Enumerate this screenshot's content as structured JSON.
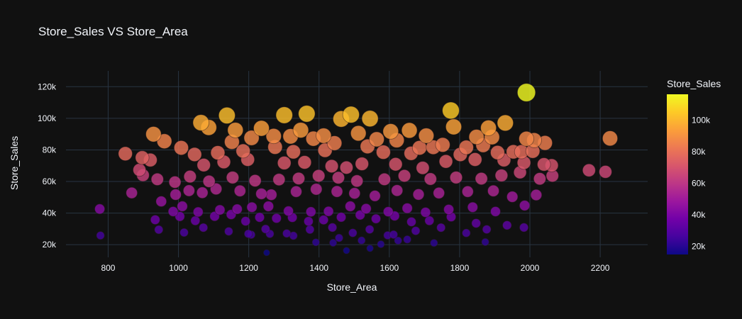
{
  "chart_data": {
    "type": "scatter",
    "title": "Store_Sales VS Store_Area",
    "xlabel": "Store_Area",
    "ylabel": "Store_Sales",
    "xlim": [
      680,
      2335
    ],
    "ylim": [
      12000,
      130000
    ],
    "x_ticks": [
      800,
      1000,
      1200,
      1400,
      1600,
      1800,
      2000,
      2200
    ],
    "x_tick_labels": [
      "800",
      "1000",
      "1200",
      "1400",
      "1600",
      "1800",
      "2000",
      "2200"
    ],
    "y_ticks": [
      20000,
      40000,
      60000,
      80000,
      100000,
      120000
    ],
    "y_tick_labels": [
      "20k",
      "40k",
      "60k",
      "80k",
      "100k",
      "120k"
    ],
    "grid": true,
    "marker_size_encodes": "Store_Sales",
    "colorbar": {
      "title": "Store_Sales",
      "range": [
        14920,
        116320
      ],
      "ticks": [
        20000,
        40000,
        60000,
        80000,
        100000
      ],
      "tick_labels": [
        "20k",
        "40k",
        "60k",
        "80k",
        "100k"
      ],
      "colorscale": [
        "#0d0887",
        "#46039f",
        "#7201a8",
        "#9c179e",
        "#bd3786",
        "#d8576b",
        "#ed7953",
        "#fb9f3a",
        "#fdca26",
        "#f0f921"
      ]
    },
    "series": [
      {
        "x": [
          1990,
          2228,
          1775,
          1365,
          1491,
          1301,
          1138,
          1064,
          1463,
          1545,
          1930,
          1657,
          1783,
          1086,
          929,
          1348,
          1162,
          1236,
          1413,
          1512,
          1604,
          1882,
          2012,
          1990,
          1208,
          1564,
          1271,
          1319,
          1384,
          1444,
          1621,
          1705,
          1848,
          2043,
          1892,
          1008,
          960,
          1152,
          1275,
          1538,
          1686,
          1752,
          1819,
          1953,
          2008,
          849,
          897,
          920,
          1046,
          1112,
          1184,
          1327,
          1417,
          1583,
          1662,
          1725,
          1802,
          1867,
          1908,
          1976,
          2062,
          2168,
          2215,
          889,
          1072,
          1129,
          1197,
          1301,
          1359,
          1436,
          1478,
          1522,
          1618,
          1695,
          1761,
          1844,
          1926,
          1983,
          2040,
          867,
          899,
          940,
          990,
          1033,
          1087,
          1154,
          1218,
          1286,
          1342,
          1399,
          1455,
          1508,
          1586,
          1643,
          1717,
          1790,
          1862,
          1919,
          1972,
          2028,
          2064,
          951,
          992,
          1030,
          1068,
          1107,
          1175,
          1236,
          1264,
          1335,
          1392,
          1451,
          1501,
          1559,
          1622,
          1683,
          1741,
          1823,
          1896,
          1950,
          2018,
          985,
          1011,
          1056,
          1118,
          1167,
          1209,
          1256,
          1313,
          1377,
          1427,
          1489,
          1534,
          1597,
          1651,
          1703,
          1769,
          1837,
          1902,
          1985,
          776,
          934,
          1004,
          1048,
          1103,
          1150,
          1191,
          1231,
          1279,
          1324,
          1370,
          1413,
          1463,
          1517,
          1562,
          1615,
          1663,
          1714,
          1776,
          1847,
          1935,
          778,
          944,
          1016,
          1071,
          1143,
          1199,
          1248,
          1308,
          1374,
          1438,
          1496,
          1544,
          1612,
          1675,
          1747,
          1819,
          1877,
          1983,
          1251,
          1478,
          1545,
          1625,
          1440,
          1576,
          1207,
          1260,
          1327,
          1391,
          1457,
          1521,
          1595,
          1651,
          1727,
          1873
        ],
        "y": [
          116320,
          87280,
          104900,
          102920,
          102310,
          102010,
          101780,
          97260,
          99570,
          99800,
          97080,
          92370,
          94620,
          94180,
          89920,
          92500,
          92470,
          93650,
          89000,
          90500,
          91700,
          93900,
          86100,
          87000,
          87600,
          86700,
          88700,
          88600,
          87100,
          84300,
          86100,
          89000,
          88200,
          84400,
          88100,
          81300,
          85500,
          85100,
          81800,
          82200,
          81300,
          83200,
          81600,
          78800,
          79200,
          77600,
          75100,
          73600,
          77100,
          78200,
          79300,
          78800,
          79800,
          78600,
          77800,
          81700,
          77100,
          83000,
          78300,
          78800,
          70200,
          67100,
          66100,
          67300,
          70400,
          72400,
          73900,
          71700,
          72100,
          69700,
          68800,
          71200,
          70900,
          68600,
          72700,
          73900,
          73600,
          71900,
          70800,
          52800,
          64000,
          61400,
          59600,
          63100,
          60100,
          62500,
          60500,
          61200,
          61900,
          63600,
          62400,
          60300,
          61400,
          63600,
          61600,
          62500,
          61800,
          63800,
          65800,
          61700,
          63600,
          47400,
          51700,
          54200,
          52900,
          55300,
          54100,
          52200,
          51600,
          53600,
          55100,
          53700,
          52500,
          50900,
          54300,
          51800,
          52700,
          53600,
          54100,
          50300,
          51500,
          41000,
          44300,
          40700,
          42000,
          42500,
          43700,
          44300,
          41300,
          40800,
          41100,
          44300,
          42800,
          40900,
          43100,
          40500,
          42300,
          43700,
          41000,
          44800,
          42600,
          35800,
          37900,
          35200,
          38000,
          39100,
          34900,
          37300,
          36700,
          37200,
          34800,
          35700,
          37400,
          38800,
          36400,
          38200,
          34500,
          35200,
          37600,
          33600,
          32300,
          25800,
          29500,
          27700,
          30800,
          28400,
          26900,
          29900,
          27100,
          29600,
          30900,
          27500,
          29700,
          26400,
          28800,
          30800,
          27400,
          29700,
          30900,
          14920,
          16300,
          17700,
          22600,
          21200,
          20300,
          26300,
          26900,
          25700,
          21500,
          24300,
          22700,
          25900,
          23300,
          21100,
          21700
        ]
      }
    ]
  }
}
